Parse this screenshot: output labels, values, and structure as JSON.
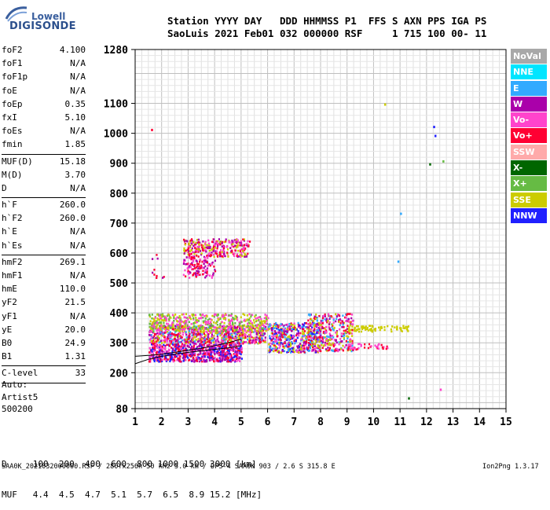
{
  "logo": {
    "company": "Lowell",
    "brand": "DIGISONDE"
  },
  "header": {
    "line1": "Station YYYY DAY   DDD HHMMSS P1  FFS S AXN PPS IGA PS",
    "line2": "SaoLuis 2021 Feb01 032 000000 RSF     1 715 100 00- 11"
  },
  "params": [
    {
      "k": "foF2",
      "v": "4.100"
    },
    {
      "k": "foF1",
      "v": "N/A"
    },
    {
      "k": "foF1p",
      "v": "N/A"
    },
    {
      "k": "foE",
      "v": "N/A"
    },
    {
      "k": "foEp",
      "v": "0.35"
    },
    {
      "k": "fxI",
      "v": "5.10"
    },
    {
      "k": "foEs",
      "v": "N/A"
    },
    {
      "k": "fmin",
      "v": "1.85"
    },
    {
      "sep": true
    },
    {
      "k": "MUF(D)",
      "v": "15.18"
    },
    {
      "k": "M(D)",
      "v": "3.70"
    },
    {
      "k": "D",
      "v": "N/A"
    },
    {
      "sep": true
    },
    {
      "k": "h`F",
      "v": "260.0"
    },
    {
      "k": "h`F2",
      "v": "260.0"
    },
    {
      "k": "h`E",
      "v": "N/A"
    },
    {
      "k": "h`Es",
      "v": "N/A"
    },
    {
      "sep": true
    },
    {
      "k": "hmF2",
      "v": "269.1"
    },
    {
      "k": "hmF1",
      "v": "N/A"
    },
    {
      "k": "hmE",
      "v": "110.0"
    },
    {
      "k": "yF2",
      "v": "21.5"
    },
    {
      "k": "yF1",
      "v": "N/A"
    },
    {
      "k": "yE",
      "v": "20.0"
    },
    {
      "k": "B0",
      "v": "24.9"
    },
    {
      "k": "B1",
      "v": "1.31"
    },
    {
      "sep": true
    },
    {
      "k": "C-level",
      "v": "33"
    },
    {
      "sep": true
    }
  ],
  "auto": {
    "line1": "Auto:",
    "line2": "Artist5",
    "line3": "500200"
  },
  "dmuf": {
    "d_line": "D     100  200  400  600  800 1000 1500 3000 [km]",
    "muf_line": "MUF   4.4  4.5  4.7  5.1  5.7  6.5  8.9 15.2 [MHz]"
  },
  "footer": "SAA0K_2021032000000.RSF / 280fx256h 50 kHz 5.0 km / DPS-4 SAA0K 903 / 2.6 S 315.8 E",
  "version": "Ion2Png 1.3.17",
  "legend": [
    {
      "label": "NoVal",
      "color": "#a8a8a8"
    },
    {
      "label": "NNE",
      "color": "#00e5ff"
    },
    {
      "label": "E",
      "color": "#33aaff"
    },
    {
      "label": "W",
      "color": "#aa00aa"
    },
    {
      "label": "Vo-",
      "color": "#ff44cc"
    },
    {
      "label": "Vo+",
      "color": "#ff0033"
    },
    {
      "label": "SSW",
      "color": "#ffaaaa"
    },
    {
      "label": "X-",
      "color": "#006600"
    },
    {
      "label": "X+",
      "color": "#66bb44"
    },
    {
      "label": "SSE",
      "color": "#cccc00"
    },
    {
      "label": "NNW",
      "color": "#2020ff"
    }
  ],
  "chart_data": {
    "type": "scatter",
    "x_ticks": [
      1,
      2,
      3,
      4,
      5,
      6,
      7,
      8,
      9,
      10,
      11,
      12,
      13,
      14,
      15
    ],
    "y_ticks": [
      80,
      200,
      300,
      400,
      500,
      600,
      700,
      800,
      900,
      1000,
      1100,
      1280
    ],
    "xlim": [
      1,
      15
    ],
    "ylim": [
      80,
      1280
    ],
    "grid": true,
    "legend_position": "right",
    "point_clusters": [
      {
        "x_range": [
          1.5,
          5.0
        ],
        "y_range": [
          240,
          300
        ],
        "colors": [
          "#ff0033",
          "#ff44cc",
          "#aa00aa",
          "#2020ff"
        ],
        "n": 700
      },
      {
        "x_range": [
          1.5,
          5.9
        ],
        "y_range": [
          300,
          360
        ],
        "colors": [
          "#cccc00",
          "#ff44cc",
          "#ff0033",
          "#33aaff",
          "#aa00aa"
        ],
        "n": 800
      },
      {
        "x_range": [
          1.5,
          6.0
        ],
        "y_range": [
          340,
          400
        ],
        "colors": [
          "#cccc00",
          "#66bb44",
          "#ff44cc"
        ],
        "n": 500
      },
      {
        "x_range": [
          6.0,
          8.0
        ],
        "y_range": [
          270,
          370
        ],
        "colors": [
          "#ff0033",
          "#ff44cc",
          "#cccc00",
          "#33aaff",
          "#2020ff",
          "#aa00aa"
        ],
        "n": 500
      },
      {
        "x_range": [
          7.5,
          9.2
        ],
        "y_range": [
          275,
          400
        ],
        "colors": [
          "#cccc00",
          "#33aaff",
          "#ff44cc",
          "#ff0033",
          "#aa00aa"
        ],
        "n": 350
      },
      {
        "x_range": [
          9.0,
          11.3
        ],
        "y_range": [
          340,
          360
        ],
        "colors": [
          "#cccc00"
        ],
        "n": 80
      },
      {
        "x_range": [
          9.0,
          10.5
        ],
        "y_range": [
          280,
          300
        ],
        "colors": [
          "#ff0033",
          "#ff44cc"
        ],
        "n": 40
      },
      {
        "x_range": [
          2.8,
          5.3
        ],
        "y_range": [
          590,
          650
        ],
        "colors": [
          "#cccc00",
          "#ff44cc",
          "#aa00aa",
          "#ff0033"
        ],
        "n": 300
      },
      {
        "x_range": [
          2.8,
          4.0
        ],
        "y_range": [
          520,
          590
        ],
        "colors": [
          "#aa00aa",
          "#ff44cc",
          "#ff0033"
        ],
        "n": 120
      },
      {
        "x_range": [
          1.6,
          2.1
        ],
        "y_range": [
          520,
          600
        ],
        "colors": [
          "#ff0033",
          "#aa00aa"
        ],
        "n": 10
      }
    ],
    "isolated_points": [
      {
        "x": 1.6,
        "y": 1015,
        "color": "#ff0033"
      },
      {
        "x": 12.25,
        "y": 1025,
        "color": "#2020ff"
      },
      {
        "x": 12.3,
        "y": 995,
        "color": "#2020ff"
      },
      {
        "x": 12.1,
        "y": 900,
        "color": "#006600"
      },
      {
        "x": 12.6,
        "y": 910,
        "color": "#66bb44"
      },
      {
        "x": 11.0,
        "y": 735,
        "color": "#33aaff"
      },
      {
        "x": 10.9,
        "y": 575,
        "color": "#33aaff"
      },
      {
        "x": 10.4,
        "y": 1100,
        "color": "#cccc00"
      },
      {
        "x": 11.3,
        "y": 118,
        "color": "#006600"
      },
      {
        "x": 12.5,
        "y": 147,
        "color": "#ff44cc"
      }
    ],
    "trace_curves": [
      {
        "points": [
          [
            1.0,
            255
          ],
          [
            1.5,
            258
          ],
          [
            2.0,
            262
          ],
          [
            2.5,
            268
          ],
          [
            3.0,
            275
          ],
          [
            3.5,
            282
          ],
          [
            4.0,
            290
          ],
          [
            4.5,
            300
          ],
          [
            5.0,
            312
          ]
        ],
        "color": "#000000"
      },
      {
        "points": [
          [
            1.0,
            230
          ],
          [
            1.5,
            245
          ],
          [
            2.0,
            255
          ],
          [
            2.5,
            262
          ],
          [
            3.0,
            268
          ],
          [
            3.5,
            273
          ],
          [
            4.0,
            278
          ],
          [
            4.5,
            283
          ],
          [
            5.0,
            290
          ]
        ],
        "color": "#000000"
      }
    ]
  }
}
